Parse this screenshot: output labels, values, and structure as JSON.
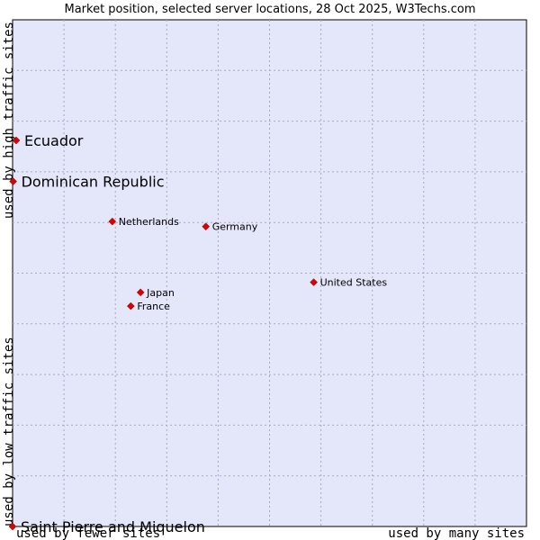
{
  "chart_data": {
    "type": "scatter",
    "title": "Market position, selected server locations, 28 Oct 2025, W3Techs.com",
    "xlabel_left": "used by fewer sites",
    "xlabel_right": "used by many sites",
    "ylabel_bottom": "used by low traffic sites",
    "ylabel_top": "used by high traffic sites",
    "xlim": [
      0,
      100
    ],
    "ylim": [
      0,
      100
    ],
    "grid": true,
    "colors": {
      "plot_bg": "#e4e6fa",
      "grid": "#a8a8c0",
      "point": "#dd0000"
    },
    "points": [
      {
        "name": "Ecuador",
        "x": 0.7,
        "y": 76.2,
        "size": "large"
      },
      {
        "name": "Dominican Republic",
        "x": 0.1,
        "y": 68.1,
        "size": "large"
      },
      {
        "name": "Netherlands",
        "x": 19.4,
        "y": 60.2,
        "size": "small"
      },
      {
        "name": "Germany",
        "x": 37.6,
        "y": 59.2,
        "size": "small"
      },
      {
        "name": "United States",
        "x": 58.6,
        "y": 48.2,
        "size": "small"
      },
      {
        "name": "Japan",
        "x": 24.9,
        "y": 46.2,
        "size": "small"
      },
      {
        "name": "France",
        "x": 23.0,
        "y": 43.5,
        "size": "small"
      },
      {
        "name": "Saint Pierre and Miquelon",
        "x": 0.0,
        "y": 0.0,
        "size": "large"
      }
    ]
  }
}
